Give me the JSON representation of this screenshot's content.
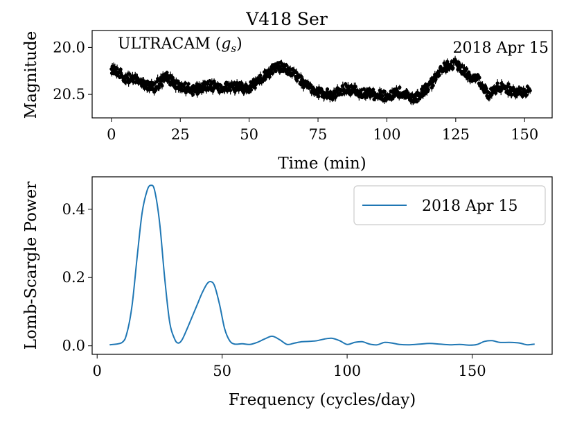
{
  "chart_data": [
    {
      "type": "scatter",
      "title": "V418 Ser",
      "xlabel": "Time (min)",
      "ylabel": "Magnitude",
      "instrument_label": "ULTRACAM (",
      "instrument_band": "g",
      "instrument_sub": "s",
      "instrument_close": ")",
      "date_label": "2018 Apr 15",
      "xlim": [
        -7,
        160
      ],
      "ylim": [
        20.75,
        19.82
      ],
      "y_inverted": true,
      "xticks": [
        0,
        25,
        50,
        75,
        100,
        125,
        150
      ],
      "xtick_labels": [
        "0",
        "25",
        "50",
        "75",
        "100",
        "125",
        "150"
      ],
      "yticks": [
        20.0,
        20.5
      ],
      "ytick_labels": [
        "20.0",
        "20.5"
      ],
      "marker_color": "#000000",
      "series_trend": {
        "x": [
          0,
          2,
          5,
          10,
          15,
          20,
          25,
          30,
          35,
          40,
          45,
          50,
          55,
          60,
          65,
          68,
          72,
          75,
          80,
          85,
          90,
          95,
          100,
          105,
          110,
          115,
          120,
          125,
          130,
          133,
          137,
          140,
          145,
          150,
          152
        ],
        "y": [
          20.22,
          20.25,
          20.33,
          20.35,
          20.43,
          20.32,
          20.42,
          20.45,
          20.4,
          20.44,
          20.42,
          20.43,
          20.32,
          20.2,
          20.25,
          20.33,
          20.43,
          20.47,
          20.52,
          20.43,
          20.48,
          20.5,
          20.52,
          20.48,
          20.55,
          20.43,
          20.22,
          20.17,
          20.3,
          20.33,
          20.5,
          20.42,
          20.45,
          20.48,
          20.45
        ],
        "scatter_amplitude": 0.06
      }
    },
    {
      "type": "line",
      "xlabel": "Frequency (cycles/day)",
      "ylabel": "Lomb-Scargle Power",
      "xlim": [
        -2,
        182
      ],
      "ylim": [
        -0.025,
        0.495
      ],
      "xticks": [
        0,
        50,
        100,
        150
      ],
      "xtick_labels": [
        "0",
        "50",
        "100",
        "150"
      ],
      "yticks": [
        0.0,
        0.2,
        0.4
      ],
      "ytick_labels": [
        "0.0",
        "0.2",
        "0.4"
      ],
      "legend_position": "upper-right",
      "series": [
        {
          "name": "2018 Apr 15",
          "color": "#1f77b4",
          "x": [
            5,
            10,
            12,
            14,
            16,
            18,
            20,
            21.5,
            23,
            25,
            27,
            29,
            31,
            32.5,
            34,
            36,
            38,
            40,
            42,
            44,
            45.5,
            47,
            49,
            51,
            53,
            55,
            58,
            61,
            64,
            67,
            70,
            73,
            76,
            79,
            82,
            85,
            88,
            91,
            94,
            97,
            100,
            103,
            106,
            109,
            112,
            115,
            118,
            121,
            125,
            129,
            133,
            137,
            141,
            145,
            149,
            152,
            155,
            158,
            161,
            165,
            169,
            172,
            175
          ],
          "y": [
            0.003,
            0.01,
            0.04,
            0.12,
            0.26,
            0.39,
            0.455,
            0.47,
            0.455,
            0.36,
            0.2,
            0.07,
            0.02,
            0.008,
            0.018,
            0.05,
            0.085,
            0.12,
            0.155,
            0.182,
            0.188,
            0.175,
            0.12,
            0.05,
            0.015,
            0.005,
            0.006,
            0.004,
            0.01,
            0.02,
            0.028,
            0.018,
            0.004,
            0.008,
            0.012,
            0.013,
            0.015,
            0.02,
            0.022,
            0.015,
            0.004,
            0.01,
            0.012,
            0.005,
            0.003,
            0.01,
            0.008,
            0.004,
            0.003,
            0.005,
            0.007,
            0.005,
            0.003,
            0.004,
            0.002,
            0.004,
            0.013,
            0.015,
            0.01,
            0.01,
            0.008,
            0.003,
            0.005
          ]
        }
      ]
    }
  ]
}
